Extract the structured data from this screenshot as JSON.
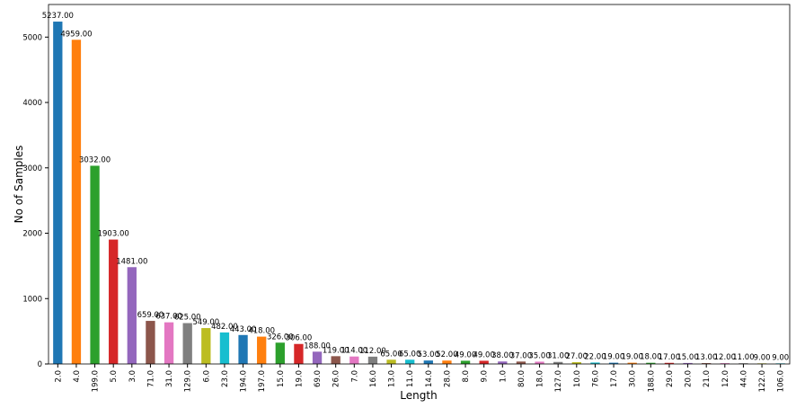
{
  "chart_data": {
    "type": "bar",
    "xlabel": "Length",
    "ylabel": "No of Samples",
    "categories": [
      "2.0",
      "4.0",
      "199.0",
      "5.0",
      "3.0",
      "71.0",
      "31.0",
      "129.0",
      "6.0",
      "23.0",
      "194.0",
      "197.0",
      "15.0",
      "19.0",
      "69.0",
      "26.0",
      "7.0",
      "16.0",
      "13.0",
      "11.0",
      "14.0",
      "28.0",
      "8.0",
      "9.0",
      "1.0",
      "80.0",
      "18.0",
      "127.0",
      "10.0",
      "76.0",
      "17.0",
      "30.0",
      "188.0",
      "29.0",
      "20.0",
      "21.0",
      "12.0",
      "44.0",
      "122.0",
      "106.0"
    ],
    "values": [
      5237,
      4959,
      3032,
      1903,
      1481,
      659,
      637,
      625,
      549,
      482,
      443,
      418,
      326,
      306,
      188,
      119,
      114,
      112,
      65,
      65,
      53,
      52,
      49,
      49,
      38,
      37,
      35,
      31,
      27,
      22,
      19,
      19,
      18,
      17,
      15,
      13,
      12,
      11,
      9,
      9
    ],
    "value_labels": [
      "5237.00",
      "4959.00",
      "3032.00",
      "1903.00",
      "1481.00",
      "659.00",
      "637.00",
      "625.00",
      "549.00",
      "482.00",
      "443.00",
      "418.00",
      "326.00",
      "306.00",
      "188.00",
      "119.00",
      "114.00",
      "112.00",
      "65.00",
      "65.00",
      "53.00",
      "52.00",
      "49.00",
      "49.00",
      "38.00",
      "37.00",
      "35.00",
      "31.00",
      "27.00",
      "22.00",
      "19.00",
      "19.00",
      "18.00",
      "17.00",
      "15.00",
      "13.00",
      "12.00",
      "11.00",
      "9.00",
      "9.00"
    ],
    "colors": [
      "#1f77b4",
      "#ff7f0e",
      "#2ca02c",
      "#d62728",
      "#9467bd",
      "#8c564b",
      "#e377c2",
      "#7f7f7f",
      "#bcbd22",
      "#17becf"
    ],
    "ylim": [
      0,
      5498.85
    ],
    "yticks": [
      0,
      1000,
      2000,
      3000,
      4000,
      5000
    ],
    "grid": false
  }
}
